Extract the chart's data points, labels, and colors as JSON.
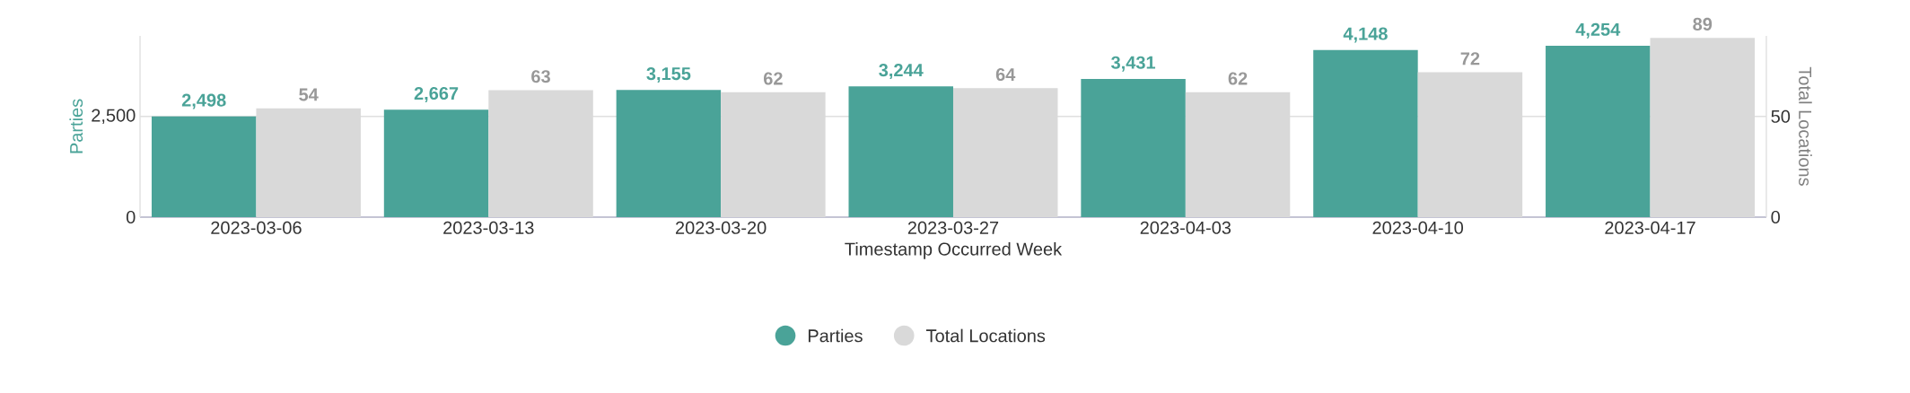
{
  "chart_data": {
    "type": "bar",
    "xlabel": "Timestamp Occurred Week",
    "ylabel": "Parties",
    "y2label": "Total Locations",
    "categories": [
      "2023-03-06",
      "2023-03-13",
      "2023-03-20",
      "2023-03-27",
      "2023-04-03",
      "2023-04-10",
      "2023-04-17"
    ],
    "series": [
      {
        "name": "Parties",
        "color": "#4aa398",
        "values": [
          2498,
          2667,
          3155,
          3244,
          3431,
          4148,
          4254
        ],
        "value_labels": [
          "2,498",
          "2,667",
          "3,155",
          "3,244",
          "3,431",
          "4,148",
          "4,254"
        ]
      },
      {
        "name": "Total Locations",
        "color": "#d9d9d9",
        "axis": "y2",
        "values": [
          54,
          63,
          62,
          64,
          62,
          72,
          89
        ],
        "value_labels": [
          "54",
          "63",
          "62",
          "64",
          "62",
          "72",
          "89"
        ]
      }
    ],
    "ylim": [
      0,
      4500
    ],
    "yticks": [
      0,
      {
        "value": 2500,
        "label": "2,500"
      }
    ],
    "y2lim": [
      0,
      90
    ],
    "y2ticks": [
      0,
      50
    ],
    "grid": "y",
    "legend": "bottom"
  }
}
